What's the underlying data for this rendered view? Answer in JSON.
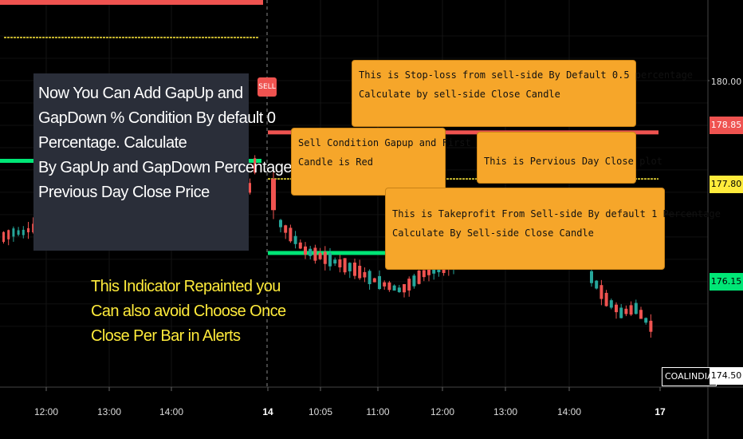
{
  "chart_data": {
    "type": "candlestick",
    "price_axis": {
      "ticks": [
        "180.00"
      ],
      "range": [
        173.8,
        181.8
      ]
    },
    "time_axis": {
      "ticks": [
        "12:00",
        "13:00",
        "14:00",
        "14",
        "10:05",
        "11:00",
        "12:00",
        "13:00",
        "14:00",
        "17"
      ]
    },
    "levels": [
      {
        "name": "stop-loss",
        "value": 178.85,
        "label": "178.85",
        "color": "#ef5350"
      },
      {
        "name": "previous-day-close",
        "value": 177.8,
        "label": "177.80",
        "color": "#ffeb3b"
      },
      {
        "name": "take-profit",
        "value": 176.15,
        "label": "176.15",
        "color": "#00e676"
      }
    ],
    "last_price": {
      "symbol": "COALINDIA",
      "value": 174.5,
      "label": "174.50"
    },
    "signal": {
      "label": "SELL",
      "color": "#ef5350"
    },
    "bullish_color": "#26a69a",
    "bearish_color": "#ef5350"
  },
  "annotations": {
    "gap_note": [
      "Now You Can Add GapUp and",
      "GapDown % Condition By default 0",
      "Percentage. Calculate",
      "By GapUp and GapDown Percentage",
      "Previous Day Close Price"
    ],
    "repaint_note": [
      "This Indicator Repainted you",
      "Can also avoid Choose Once",
      "Close Per Bar in Alerts"
    ],
    "stoploss_bubble": [
      "This is Stop-loss from sell-side By Default 0.5 percentage",
      "Calculate by sell-side Close Candle"
    ],
    "sell_condition_bubble": [
      "Sell Condition Gapup and First",
      "Candle is Red"
    ],
    "prev_close_bubble": [
      "This is Pervious Day Close plot"
    ],
    "takeprofit_bubble": [
      "This is Takeprofit From Sell-side By default 1 Percentage",
      "Calculate By Sell-side Close Candle"
    ]
  }
}
